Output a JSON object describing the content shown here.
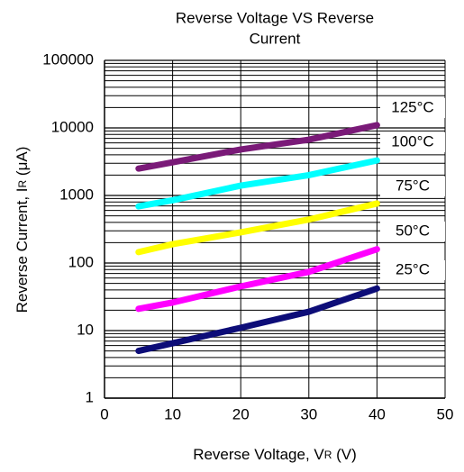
{
  "chart_data": {
    "type": "line",
    "title": [
      "Reverse Voltage VS Reverse",
      "Current"
    ],
    "x_label": {
      "text": "Reverse Voltage, V",
      "sub": "R",
      "after": " (V)"
    },
    "y_label": {
      "text": "Reverse Current, I",
      "sub": "R",
      "after": " (μA)"
    },
    "x": [
      5,
      10,
      20,
      30,
      40
    ],
    "series": [
      {
        "name": "125°C",
        "color": "#7a1a78",
        "values": [
          2500,
          3100,
          4800,
          6700,
          11000
        ]
      },
      {
        "name": "100°C",
        "color": "#00ffff",
        "values": [
          690,
          850,
          1400,
          2000,
          3300
        ]
      },
      {
        "name": "75°C",
        "color": "#ffff00",
        "values": [
          145,
          190,
          285,
          440,
          760
        ]
      },
      {
        "name": "50°C",
        "color": "#ff00ff",
        "values": [
          21,
          26,
          45,
          74,
          160
        ]
      },
      {
        "name": "25°C",
        "color": "#0d0d78",
        "values": [
          5,
          6.5,
          11,
          19,
          42
        ]
      }
    ],
    "xlim": [
      0,
      50
    ],
    "xticks": [
      0,
      10,
      20,
      30,
      40,
      50
    ],
    "ylim": [
      1,
      100000
    ],
    "yticks": [
      1,
      10,
      100,
      1000,
      10000,
      100000
    ],
    "log_y": true,
    "grid": true,
    "minor_grid": true
  }
}
